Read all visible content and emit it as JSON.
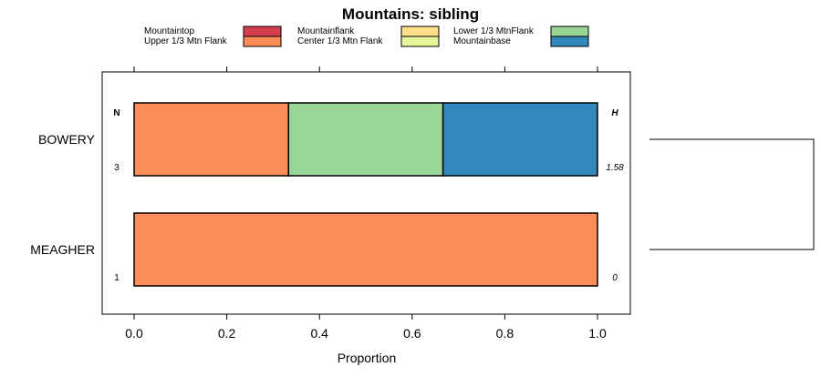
{
  "chart_data": {
    "type": "bar",
    "orientation": "horizontal",
    "stacked": true,
    "title": "Mountains: sibling",
    "xlabel": "Proportion",
    "ylabel": "",
    "xlim": [
      0,
      1
    ],
    "x_ticks": [
      "0.0",
      "0.2",
      "0.4",
      "0.6",
      "0.8",
      "1.0"
    ],
    "x_tick_values": [
      0,
      0.2,
      0.4,
      0.6,
      0.8,
      1.0
    ],
    "categories": [
      "BOWERY",
      "MEAGHER"
    ],
    "series": [
      {
        "name": "Mountaintop",
        "color": "#d53e4f",
        "values": [
          0,
          0
        ]
      },
      {
        "name": "Upper 1/3 Mtn Flank",
        "color": "#fc8d59",
        "values": [
          0.3333,
          1.0
        ]
      },
      {
        "name": "Mountainflank",
        "color": "#fee08b",
        "values": [
          0,
          0
        ]
      },
      {
        "name": "Center 1/3 Mtn Flank",
        "color": "#e6f598",
        "values": [
          0,
          0
        ]
      },
      {
        "name": "Lower 1/3 MtnFlank",
        "color": "#99d594",
        "values": [
          0.3333,
          0
        ]
      },
      {
        "name": "Mountainbase",
        "color": "#3288bd",
        "values": [
          0.3333,
          0
        ]
      }
    ],
    "legend_order": [
      "Mountaintop",
      "Mountainflank",
      "Lower 1/3 MtnFlank",
      "Upper 1/3 Mtn Flank",
      "Center 1/3 Mtn Flank",
      "Mountainbase"
    ],
    "legend_position": "top",
    "n_header": "N",
    "h_header": "H",
    "n_values": [
      "3",
      "1"
    ],
    "h_values": [
      "1.58",
      "0"
    ],
    "dendrogram": true
  }
}
